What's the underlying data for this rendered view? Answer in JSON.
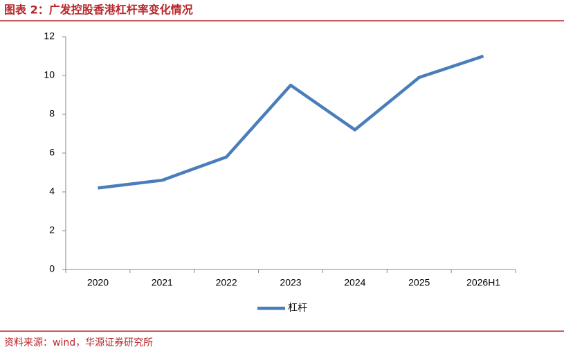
{
  "chart_data": {
    "type": "line",
    "title": "图表 2：广发控股香港杠杆率变化情况",
    "categories": [
      "2020",
      "2021",
      "2022",
      "2023",
      "2024",
      "2025",
      "2026H1"
    ],
    "series": [
      {
        "name": "杠杆",
        "color": "#4a7dbb",
        "values": [
          4.2,
          4.6,
          5.8,
          9.5,
          7.2,
          9.9,
          11.0
        ]
      }
    ],
    "ylim": [
      0,
      12
    ],
    "yticks": [
      0,
      2,
      4,
      6,
      8,
      10,
      12
    ],
    "grid": false,
    "legend": "bottom",
    "source": "资料来源：wind，华源证券研究所"
  }
}
